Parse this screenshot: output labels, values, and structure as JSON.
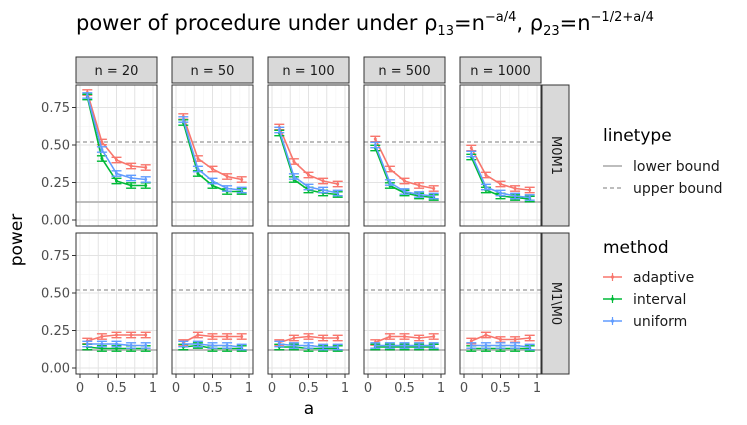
{
  "chart_data": {
    "type": "line",
    "title": {
      "main": "power of procedure under under ρ",
      "sub1": "13",
      "eq1": "=n",
      "sup1": "−a/4",
      "sep": ", ρ",
      "sub2": "23",
      "eq2": "=n",
      "sup2": "−1/2+a/4"
    },
    "xlabel": "a",
    "ylabel": "power",
    "xlim": [
      0,
      1
    ],
    "ylim": [
      -0.04,
      0.9
    ],
    "x_ticks": [
      0,
      0.25,
      0.5,
      0.75,
      1
    ],
    "x_tick_labels": [
      "0",
      "",
      "0.5",
      "",
      "1"
    ],
    "y_ticks": [
      0,
      0.25,
      0.5,
      0.75
    ],
    "y_tick_labels": [
      "0.00",
      "0.25",
      "0.50",
      "0.75"
    ],
    "columns": [
      "n = 20",
      "n = 50",
      "n = 100",
      "n = 500",
      "n = 1000"
    ],
    "rows": [
      "M0M1",
      "M1\\M0"
    ],
    "hlines": [
      {
        "name": "lower bound",
        "value": 0.12,
        "linetype": "solid",
        "color": "#bdbdbd"
      },
      {
        "name": "upper bound",
        "value": 0.52,
        "linetype": "dashed",
        "color": "#bdbdbd"
      }
    ],
    "x": [
      0.1,
      0.3,
      0.5,
      0.7,
      0.9
    ],
    "methods": [
      {
        "name": "adaptive",
        "color": "#F8766D"
      },
      {
        "name": "interval",
        "color": "#00BA38"
      },
      {
        "name": "uniform",
        "color": "#619CFF"
      }
    ],
    "error_half_width": 0.018,
    "series": [
      [
        {
          "adaptive": [
            0.85,
            0.52,
            0.4,
            0.36,
            0.35
          ],
          "interval": [
            0.82,
            0.41,
            0.26,
            0.23,
            0.23
          ],
          "uniform": [
            0.83,
            0.47,
            0.31,
            0.28,
            0.27
          ]
        },
        {
          "adaptive": [
            0.69,
            0.41,
            0.34,
            0.29,
            0.27
          ],
          "interval": [
            0.65,
            0.31,
            0.23,
            0.19,
            0.19
          ],
          "uniform": [
            0.67,
            0.34,
            0.26,
            0.21,
            0.2
          ]
        },
        {
          "adaptive": [
            0.62,
            0.39,
            0.3,
            0.26,
            0.24
          ],
          "interval": [
            0.58,
            0.27,
            0.2,
            0.18,
            0.17
          ],
          "uniform": [
            0.6,
            0.29,
            0.22,
            0.2,
            0.18
          ]
        },
        {
          "adaptive": [
            0.54,
            0.34,
            0.26,
            0.23,
            0.21
          ],
          "interval": [
            0.48,
            0.23,
            0.18,
            0.16,
            0.15
          ],
          "uniform": [
            0.5,
            0.25,
            0.19,
            0.17,
            0.16
          ]
        },
        {
          "adaptive": [
            0.48,
            0.3,
            0.24,
            0.21,
            0.2
          ],
          "interval": [
            0.42,
            0.2,
            0.16,
            0.15,
            0.14
          ],
          "uniform": [
            0.44,
            0.22,
            0.18,
            0.16,
            0.15
          ]
        }
      ],
      [
        {
          "adaptive": [
            0.18,
            0.21,
            0.22,
            0.22,
            0.22
          ],
          "interval": [
            0.14,
            0.13,
            0.13,
            0.13,
            0.13
          ],
          "uniform": [
            0.16,
            0.16,
            0.16,
            0.15,
            0.15
          ]
        },
        {
          "adaptive": [
            0.17,
            0.22,
            0.21,
            0.21,
            0.21
          ],
          "interval": [
            0.14,
            0.15,
            0.13,
            0.13,
            0.13
          ],
          "uniform": [
            0.16,
            0.16,
            0.15,
            0.15,
            0.14
          ]
        },
        {
          "adaptive": [
            0.17,
            0.2,
            0.21,
            0.2,
            0.2
          ],
          "interval": [
            0.14,
            0.14,
            0.13,
            0.13,
            0.13
          ],
          "uniform": [
            0.16,
            0.15,
            0.15,
            0.14,
            0.14
          ]
        },
        {
          "adaptive": [
            0.17,
            0.21,
            0.21,
            0.2,
            0.21
          ],
          "interval": [
            0.14,
            0.14,
            0.14,
            0.14,
            0.14
          ],
          "uniform": [
            0.15,
            0.15,
            0.15,
            0.15,
            0.15
          ]
        },
        {
          "adaptive": [
            0.18,
            0.22,
            0.19,
            0.19,
            0.2
          ],
          "interval": [
            0.13,
            0.13,
            0.13,
            0.13,
            0.13
          ],
          "uniform": [
            0.15,
            0.15,
            0.15,
            0.15,
            0.14
          ]
        }
      ]
    ],
    "legend": {
      "linetype_title": "linetype",
      "linetype_items": [
        "lower bound",
        "upper bound"
      ],
      "method_title": "method",
      "method_items": [
        "adaptive",
        "interval",
        "uniform"
      ],
      "placement": "right"
    }
  }
}
